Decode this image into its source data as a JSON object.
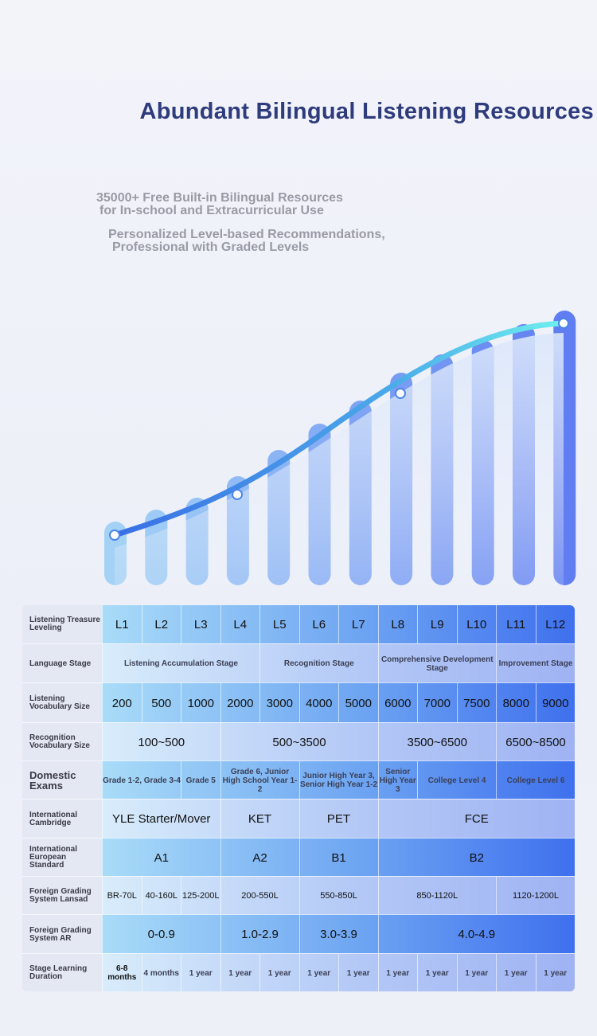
{
  "header": {
    "title": "Abundant Bilingual Listening Resources",
    "features": [
      [
        "35000+ Free Built-in Bilingual Resources",
        "for In-school and Extracurricular Use"
      ],
      [
        "Personalized Level-based Recommendations,",
        "Professional with Graded Levels"
      ]
    ]
  },
  "table": {
    "rows": [
      {
        "label": "Listening Treasure Leveling",
        "cells": [
          "L1",
          "L2",
          "L3",
          "L4",
          "L5",
          "L6",
          "L7",
          "L8",
          "L9",
          "L10",
          "L11",
          "L12"
        ]
      },
      {
        "label": "Language Stage",
        "cells": [
          "Listening Accumulation Stage",
          "Recognition Stage",
          "Comprehensive Development Stage",
          "Improvement Stage"
        ]
      },
      {
        "label": "Listening Vocabulary Size",
        "cells": [
          "200",
          "500",
          "1000",
          "2000",
          "3000",
          "4000",
          "5000",
          "6000",
          "7000",
          "7500",
          "8000",
          "9000"
        ]
      },
      {
        "label": "Recognition Vocabulary Size",
        "cells": [
          "100~500",
          "500~3500",
          "3500~6500",
          "6500~8500"
        ]
      },
      {
        "label": "Domestic Exams",
        "cells": [
          "Grade 1-2, Grade 3-4",
          "Grade 5",
          "Grade 6, Junior High School Year 1-2",
          "Junior High Year 3, Senior High Year 1-2",
          "Senior High Year 3",
          "College Level 4",
          "College Level 6"
        ]
      },
      {
        "label": "International Cambridge",
        "cells": [
          "YLE Starter/Mover",
          "KET",
          "PET",
          "FCE"
        ]
      },
      {
        "label": "International European Standard",
        "cells": [
          "A1",
          "A2",
          "B1",
          "B2"
        ]
      },
      {
        "label": "Foreign Grading System Lansad",
        "cells": [
          "BR-70L",
          "40-160L",
          "125-200L",
          "200-550L",
          "550-850L",
          "850-1120L",
          "1120-1200L"
        ]
      },
      {
        "label": "Foreign Grading System AR",
        "cells": [
          "0-0.9",
          "1.0-2.9",
          "3.0-3.9",
          "4.0-4.9"
        ]
      },
      {
        "label": "Stage Learning Duration",
        "cells": [
          "6-8 months",
          "4 months",
          "1 year",
          "1 year",
          "1 year",
          "1 year",
          "1 year",
          "1 year",
          "1 year",
          "1 year",
          "1 year",
          "1 year"
        ]
      }
    ]
  }
}
